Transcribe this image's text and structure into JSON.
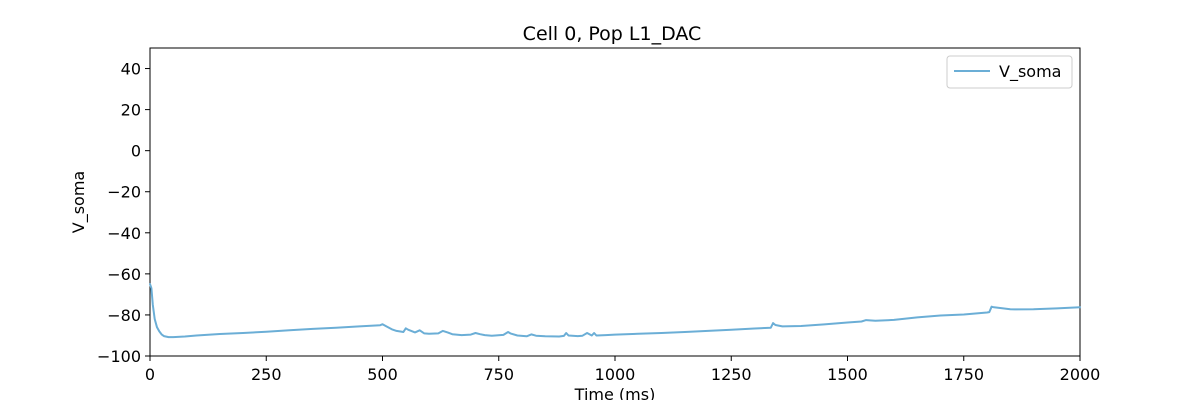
{
  "chart_data": {
    "type": "line",
    "title": "Cell 0, Pop L1_DAC",
    "xlabel": "Time (ms)",
    "ylabel": "V_soma",
    "xlim": [
      0,
      2000
    ],
    "ylim": [
      -100,
      50
    ],
    "xticks": [
      0,
      250,
      500,
      750,
      1000,
      1250,
      1500,
      1750,
      2000
    ],
    "yticks": [
      -100,
      -80,
      -60,
      -40,
      -20,
      0,
      20,
      40
    ],
    "xtick_labels": [
      "0",
      "250",
      "500",
      "750",
      "1000",
      "1250",
      "1500",
      "1750",
      "2000"
    ],
    "ytick_labels": [
      "−100",
      "−80",
      "−60",
      "−40",
      "−20",
      "0",
      "20",
      "40"
    ],
    "grid": false,
    "legend_position": "top-right",
    "series": [
      {
        "name": "V_soma",
        "color": "#6baed6",
        "x": [
          0,
          3,
          6,
          10,
          15,
          20,
          25,
          30,
          40,
          50,
          75,
          100,
          150,
          200,
          250,
          300,
          350,
          400,
          450,
          495,
          500,
          510,
          520,
          530,
          545,
          550,
          555,
          570,
          580,
          590,
          600,
          620,
          630,
          640,
          650,
          670,
          690,
          700,
          710,
          720,
          735,
          760,
          770,
          775,
          790,
          810,
          820,
          830,
          850,
          880,
          890,
          895,
          900,
          920,
          930,
          940,
          950,
          955,
          960,
          980,
          1000,
          1050,
          1100,
          1150,
          1200,
          1250,
          1300,
          1335,
          1340,
          1345,
          1360,
          1400,
          1450,
          1500,
          1530,
          1540,
          1560,
          1600,
          1650,
          1700,
          1750,
          1800,
          1805,
          1810,
          1815,
          1850,
          1860,
          1900,
          1950,
          2000
        ],
        "y": [
          -65,
          -67,
          -75,
          -82,
          -86,
          -88,
          -89.5,
          -90.3,
          -90.8,
          -90.8,
          -90.5,
          -90,
          -89.3,
          -88.8,
          -88.2,
          -87.5,
          -86.8,
          -86.2,
          -85.6,
          -85,
          -84.5,
          -85.8,
          -87,
          -87.8,
          -88.3,
          -86.5,
          -87.2,
          -88.5,
          -87.5,
          -89,
          -89.2,
          -89,
          -87.8,
          -88.5,
          -89.4,
          -89.8,
          -89.6,
          -88.8,
          -89.4,
          -89.8,
          -90.1,
          -89.7,
          -88.3,
          -89,
          -90,
          -90.4,
          -89.5,
          -90.1,
          -90.4,
          -90.5,
          -90.2,
          -88.8,
          -90,
          -90.3,
          -90.1,
          -88.8,
          -90,
          -88.8,
          -90,
          -89.8,
          -89.6,
          -89.2,
          -88.8,
          -88.3,
          -87.8,
          -87.2,
          -86.6,
          -86.2,
          -84,
          -84.9,
          -85.6,
          -85.4,
          -84.6,
          -83.7,
          -83.2,
          -82.5,
          -82.8,
          -82.4,
          -81.2,
          -80.3,
          -79.8,
          -78.8,
          -78.6,
          -76,
          -76.3,
          -77.2,
          -77.3,
          -77.2,
          -76.8,
          -76.3
        ]
      }
    ]
  }
}
